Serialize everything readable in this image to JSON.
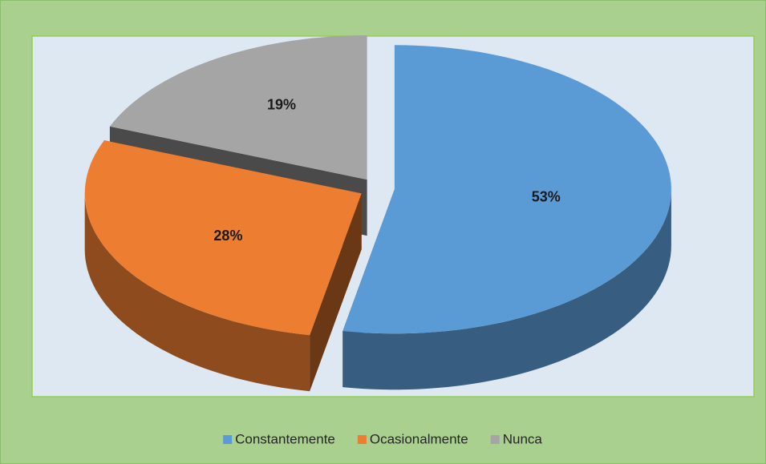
{
  "chart_data": {
    "type": "pie3d",
    "categories": [
      "Constantemente",
      "Ocasionalmente",
      "Nunca"
    ],
    "values": [
      53,
      28,
      19
    ],
    "value_labels": [
      "53%",
      "28%",
      "19%"
    ],
    "colors": [
      "#5b9bd5",
      "#ed7d31",
      "#a5a5a5"
    ],
    "legend": "bottom"
  }
}
